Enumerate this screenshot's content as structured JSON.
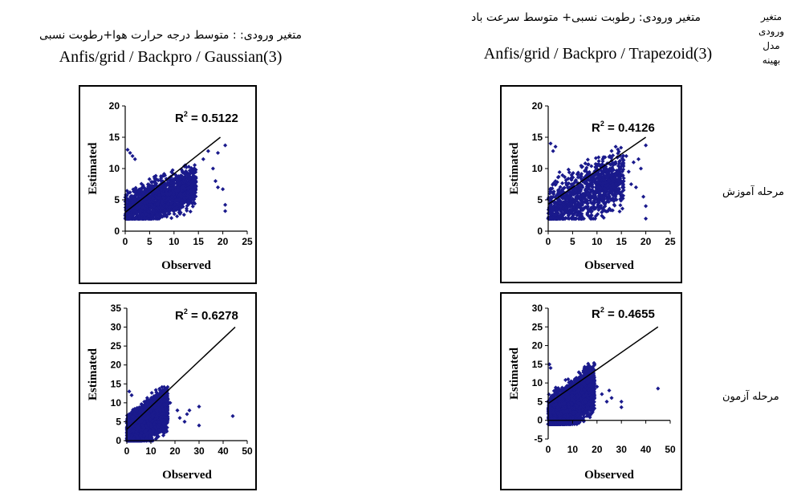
{
  "header": {
    "right_label_lines": [
      "متغیر",
      "ورودی",
      "مدل",
      "بهینه"
    ],
    "col_right_title": "متغیر ورودی: رطوبت نسبی+ متوسط سرعت باد",
    "col_right_model": "Anfis/grid / Backpro / Trapezoid(3)",
    "col_left_title": "متغیر ورودی: : متوسط درجه حرارت هوا+رطوبت نسبی",
    "col_left_model": "Anfis/grid / Backpro / Gaussian(3)"
  },
  "rows": {
    "train_label": "مرحله آموزش",
    "test_label": "مرحله آزمون"
  },
  "colors": {
    "points": "#1a1a8c",
    "line": "#000000"
  },
  "chart_data": [
    {
      "id": "left-train",
      "type": "scatter",
      "xlabel": "Observed",
      "ylabel": "Estimated",
      "xlim": [
        0,
        25
      ],
      "ylim": [
        0,
        20
      ],
      "xticks": [
        0,
        5,
        10,
        15,
        20,
        25
      ],
      "yticks": [
        0,
        5,
        10,
        15,
        20
      ],
      "annotation": "R² = 0.5122",
      "r2_value": "0.5122",
      "trend_line": [
        [
          0,
          3
        ],
        [
          19.5,
          15
        ]
      ],
      "cloud": {
        "x_range": [
          0,
          14.5
        ],
        "y_min_line": [
          0,
          2
        ],
        "y_spread": 8,
        "count": 1500
      },
      "outliers": [
        [
          20,
          6.7
        ],
        [
          20.5,
          4.2
        ],
        [
          20.5,
          3.2
        ],
        [
          19,
          7
        ],
        [
          18.5,
          8
        ],
        [
          17,
          12.8
        ],
        [
          18,
          10
        ],
        [
          19,
          12.5
        ],
        [
          20.5,
          13.7
        ],
        [
          0.5,
          13
        ],
        [
          1,
          12.5
        ],
        [
          1.5,
          12
        ],
        [
          2,
          11.5
        ],
        [
          16,
          11.5
        ]
      ]
    },
    {
      "id": "right-train",
      "type": "scatter",
      "xlabel": "Observed",
      "ylabel": "Estimated",
      "xlim": [
        0,
        25
      ],
      "ylim": [
        0,
        20
      ],
      "xticks": [
        0,
        5,
        10,
        15,
        20,
        25
      ],
      "yticks": [
        0,
        5,
        10,
        15,
        20
      ],
      "annotation": "R² = 0.4126",
      "r2_value": "0.4126",
      "trend_line": [
        [
          0,
          4.3
        ],
        [
          20,
          15
        ]
      ],
      "cloud": {
        "x_range": [
          0,
          15.5
        ],
        "y_min_line": [
          0,
          2
        ],
        "y_spread": 11,
        "count": 1100
      },
      "outliers": [
        [
          20,
          2
        ],
        [
          20,
          4
        ],
        [
          19.5,
          5.5
        ],
        [
          18,
          7
        ],
        [
          16.5,
          9.5
        ],
        [
          17.5,
          11
        ],
        [
          18.5,
          11.5
        ],
        [
          16,
          12
        ],
        [
          19,
          10
        ],
        [
          1.5,
          13.5
        ],
        [
          1,
          12.8
        ],
        [
          0.5,
          14
        ],
        [
          20,
          13.7
        ],
        [
          17,
          7.5
        ]
      ]
    },
    {
      "id": "left-test",
      "type": "scatter",
      "xlabel": "Observed",
      "ylabel": "Estimated",
      "xlim": [
        0,
        50
      ],
      "ylim": [
        0,
        35
      ],
      "xticks": [
        0,
        10,
        20,
        30,
        40,
        50
      ],
      "yticks": [
        0,
        5,
        10,
        15,
        20,
        25,
        30,
        35
      ],
      "annotation": "R² = 0.6278",
      "r2_value": "0.6278",
      "trend_line": [
        [
          0,
          3
        ],
        [
          45,
          30
        ]
      ],
      "cloud": {
        "x_range": [
          0,
          17
        ],
        "y_min_line": [
          0,
          0
        ],
        "y_spread": 14,
        "count": 2500
      },
      "outliers": [
        [
          44,
          6.5
        ],
        [
          30,
          9
        ],
        [
          30,
          4
        ],
        [
          25,
          7
        ],
        [
          24,
          5
        ],
        [
          21,
          8
        ],
        [
          22,
          6
        ],
        [
          1,
          13
        ],
        [
          2,
          12
        ],
        [
          26,
          8
        ],
        [
          18,
          10
        ]
      ]
    },
    {
      "id": "right-test",
      "type": "scatter",
      "xlabel": "Observed",
      "ylabel": "Estimated",
      "xlim": [
        0,
        50
      ],
      "ylim": [
        -5,
        30
      ],
      "xticks": [
        0,
        10,
        20,
        30,
        40,
        50
      ],
      "yticks": [
        -5,
        0,
        5,
        10,
        15,
        20,
        25,
        30
      ],
      "annotation": "R² = 0.4655",
      "r2_value": "0.4655",
      "trend_line": [
        [
          0,
          4.5
        ],
        [
          45,
          25
        ]
      ],
      "cloud": {
        "x_range": [
          0,
          19
        ],
        "y_min_line": [
          0,
          -1
        ],
        "y_spread": 16,
        "count": 2500
      },
      "outliers": [
        [
          45,
          8.5
        ],
        [
          30,
          5
        ],
        [
          30,
          3.5
        ],
        [
          25,
          8
        ],
        [
          24,
          5
        ],
        [
          22,
          7
        ],
        [
          20,
          9
        ],
        [
          26,
          6
        ],
        [
          0.5,
          15
        ],
        [
          1,
          14
        ]
      ]
    }
  ]
}
